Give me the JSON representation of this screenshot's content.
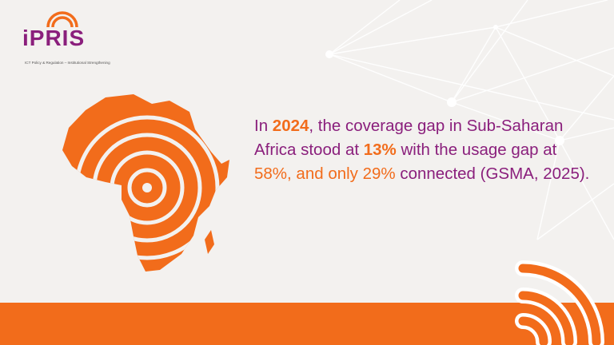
{
  "logo": {
    "wordmark": "iPRIS",
    "tagline": "ICT Policy & Regulation – Institutional Strengthening"
  },
  "statement": {
    "part1": "In ",
    "year": "2024",
    "part2": ", the coverage gap in Sub-Saharan Africa stood at ",
    "coverage_gap": "13%",
    "part3": " with the usage gap at ",
    "usage_gap": "58%, and only 29%",
    "part4": " connected (GSMA, 2025)."
  },
  "colors": {
    "brand_purple": "#8a1f7c",
    "brand_orange": "#f26c1b",
    "background": "#f3f1ef"
  },
  "icons": [
    "africa-signal-map-icon",
    "wifi-signal-icon"
  ]
}
